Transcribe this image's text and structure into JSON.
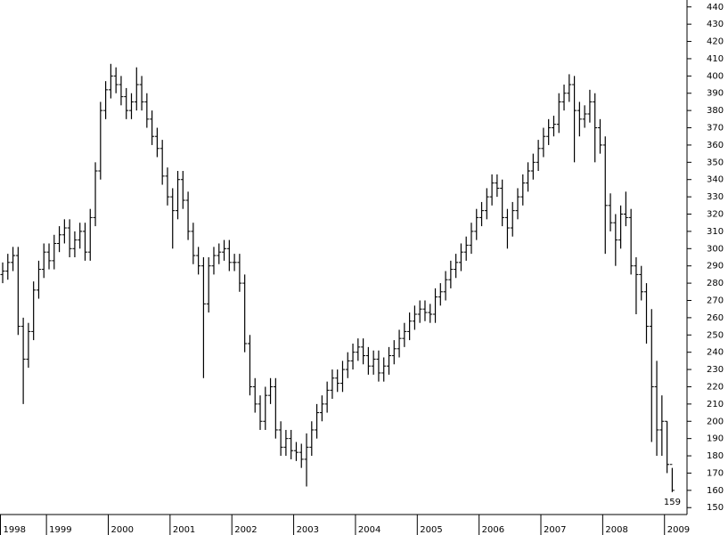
{
  "chart_data": {
    "type": "ohlc",
    "color": "#000000",
    "annotate_min": true,
    "categories": [
      "1998",
      null,
      null,
      null,
      null,
      null,
      null,
      null,
      null,
      "1999",
      null,
      null,
      null,
      null,
      null,
      null,
      null,
      null,
      null,
      null,
      null,
      "2000",
      null,
      null,
      null,
      null,
      null,
      null,
      null,
      null,
      null,
      null,
      null,
      "2001",
      null,
      null,
      null,
      null,
      null,
      null,
      null,
      null,
      null,
      null,
      null,
      "2002",
      null,
      null,
      null,
      null,
      null,
      null,
      null,
      null,
      null,
      null,
      null,
      "2003",
      null,
      null,
      null,
      null,
      null,
      null,
      null,
      null,
      null,
      null,
      null,
      "2004",
      null,
      null,
      null,
      null,
      null,
      null,
      null,
      null,
      null,
      null,
      null,
      "2005",
      null,
      null,
      null,
      null,
      null,
      null,
      null,
      null,
      null,
      null,
      null,
      "2006",
      null,
      null,
      null,
      null,
      null,
      null,
      null,
      null,
      null,
      null,
      null,
      "2007",
      null,
      null,
      null,
      null,
      null,
      null,
      null,
      null,
      null,
      null,
      null,
      "2008",
      null,
      null,
      null,
      null,
      null,
      null,
      null,
      null,
      null,
      null,
      null,
      "2009",
      null
    ],
    "open": [
      285,
      287,
      292,
      296,
      255,
      236,
      252,
      276,
      288,
      298,
      293,
      303,
      308,
      312,
      300,
      305,
      310,
      298,
      318,
      345,
      380,
      392,
      400,
      395,
      388,
      380,
      385,
      395,
      385,
      375,
      365,
      358,
      342,
      330,
      322,
      340,
      328,
      310,
      296,
      290,
      268,
      290,
      296,
      298,
      300,
      292,
      292,
      280,
      245,
      220,
      210,
      200,
      215,
      220,
      195,
      185,
      190,
      183,
      182,
      178,
      185,
      195,
      205,
      210,
      218,
      225,
      222,
      230,
      235,
      240,
      243,
      238,
      232,
      236,
      228,
      232,
      238,
      242,
      248,
      252,
      258,
      262,
      265,
      263,
      262,
      272,
      275,
      282,
      288,
      292,
      298,
      302,
      310,
      318,
      322,
      330,
      338,
      335,
      318,
      312,
      322,
      330,
      338,
      345,
      350,
      358,
      365,
      370,
      372,
      385,
      390,
      395,
      380,
      375,
      378,
      385,
      370,
      360,
      325,
      315,
      305,
      320,
      318,
      290,
      285,
      275,
      255,
      220,
      195,
      200,
      175
    ],
    "high": [
      292,
      297,
      301,
      301,
      260,
      257,
      281,
      293,
      303,
      303,
      308,
      313,
      317,
      317,
      310,
      315,
      315,
      323,
      350,
      385,
      397,
      407,
      405,
      400,
      393,
      390,
      405,
      400,
      390,
      380,
      370,
      363,
      347,
      335,
      345,
      345,
      333,
      315,
      301,
      295,
      295,
      301,
      303,
      305,
      305,
      297,
      297,
      285,
      250,
      225,
      215,
      220,
      225,
      225,
      200,
      195,
      195,
      188,
      187,
      193,
      200,
      210,
      215,
      223,
      230,
      230,
      235,
      240,
      245,
      248,
      248,
      243,
      241,
      241,
      237,
      243,
      247,
      253,
      257,
      263,
      267,
      270,
      270,
      268,
      277,
      280,
      287,
      293,
      297,
      303,
      307,
      315,
      323,
      327,
      335,
      343,
      343,
      340,
      323,
      327,
      335,
      343,
      350,
      355,
      363,
      370,
      375,
      377,
      390,
      395,
      401,
      400,
      385,
      383,
      392,
      390,
      375,
      365,
      332,
      320,
      325,
      333,
      323,
      295,
      290,
      280,
      265,
      235,
      215,
      200,
      173
    ],
    "low": [
      280,
      282,
      287,
      250,
      210,
      231,
      247,
      271,
      283,
      288,
      288,
      298,
      303,
      295,
      295,
      300,
      293,
      293,
      313,
      340,
      375,
      387,
      390,
      383,
      375,
      375,
      380,
      380,
      370,
      360,
      353,
      337,
      325,
      300,
      317,
      323,
      305,
      291,
      285,
      225,
      263,
      285,
      291,
      293,
      287,
      287,
      275,
      240,
      215,
      205,
      195,
      195,
      210,
      190,
      180,
      180,
      178,
      177,
      173,
      162.24,
      180,
      190,
      200,
      205,
      213,
      217,
      217,
      225,
      230,
      235,
      233,
      227,
      227,
      223,
      223,
      227,
      233,
      237,
      243,
      247,
      253,
      257,
      258,
      257,
      257,
      267,
      270,
      277,
      283,
      287,
      293,
      297,
      305,
      313,
      317,
      325,
      330,
      313,
      300,
      307,
      317,
      325,
      333,
      340,
      345,
      353,
      360,
      365,
      367,
      380,
      385,
      350,
      365,
      370,
      373,
      350,
      355,
      297,
      310,
      290,
      300,
      313,
      285,
      262,
      270,
      245,
      188,
      180,
      180,
      170,
      159
    ],
    "close": [
      287,
      292,
      296,
      255,
      236,
      252,
      276,
      288,
      298,
      293,
      303,
      308,
      312,
      300,
      305,
      310,
      298,
      318,
      345,
      380,
      392,
      400,
      395,
      388,
      380,
      385,
      395,
      385,
      375,
      365,
      358,
      342,
      330,
      322,
      340,
      328,
      310,
      296,
      290,
      268,
      290,
      296,
      298,
      300,
      292,
      292,
      280,
      245,
      220,
      210,
      200,
      215,
      220,
      195,
      185,
      190,
      183,
      182,
      178,
      185,
      195,
      205,
      210,
      218,
      225,
      222,
      230,
      235,
      240,
      243,
      238,
      232,
      236,
      228,
      232,
      238,
      242,
      248,
      252,
      258,
      262,
      265,
      263,
      262,
      272,
      275,
      282,
      288,
      292,
      298,
      302,
      310,
      318,
      322,
      330,
      338,
      335,
      318,
      312,
      322,
      330,
      338,
      345,
      350,
      358,
      365,
      370,
      372,
      385,
      390,
      395,
      380,
      375,
      378,
      385,
      370,
      360,
      325,
      315,
      305,
      320,
      318,
      290,
      285,
      275,
      255,
      220,
      195,
      200,
      175,
      160
    ],
    "ylim": [
      146,
      444
    ],
    "yticks": [
      150,
      160,
      170,
      180,
      190,
      200,
      210,
      220,
      230,
      240,
      250,
      260,
      270,
      280,
      290,
      300,
      310,
      320,
      330,
      340,
      350,
      360,
      370,
      380,
      390,
      400,
      410,
      420,
      430,
      440
    ]
  }
}
